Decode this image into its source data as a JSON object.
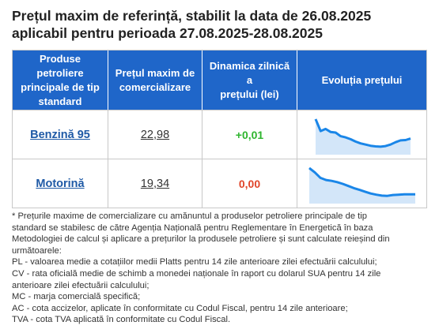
{
  "title": {
    "line1": "Prețul maxim de referință, stabilit la data de 26.08.2025",
    "line2": "aplicabil pentru perioada 27.08.2025-28.08.2025"
  },
  "table": {
    "headers": {
      "products": [
        "Produse petroliere",
        "principale de tip",
        "standard"
      ],
      "max_price": [
        "Prețul maxim de",
        "comercializare"
      ],
      "dynamics": [
        "Dinamica zilnică a",
        "prețului (lei)"
      ],
      "evolution": "Evoluția prețului"
    },
    "header_color": "#1f66c9",
    "rows": [
      {
        "product": "Benzină 95",
        "price": "22,98",
        "dynamics": "+0,01",
        "dynamics_color": "#2fb52f",
        "trend": [
          0.95,
          0.55,
          0.62,
          0.52,
          0.5,
          0.38,
          0.34,
          0.28,
          0.2,
          0.14,
          0.1,
          0.06,
          0.04,
          0.03,
          0.05,
          0.1,
          0.18,
          0.24,
          0.25,
          0.3
        ]
      },
      {
        "product": "Motorină",
        "price": "19,34",
        "dynamics": "0,00",
        "dynamics_color": "#e0452a",
        "trend": [
          0.95,
          0.8,
          0.62,
          0.55,
          0.52,
          0.48,
          0.42,
          0.35,
          0.28,
          0.22,
          0.16,
          0.1,
          0.06,
          0.03,
          0.02,
          0.05,
          0.06,
          0.07,
          0.07,
          0.07
        ]
      }
    ],
    "trend_color": "#1a86e8",
    "trend_fill": "#d3e6f9"
  },
  "notes": [
    "* Prețurile maxime de comercializare cu amănuntul a produselor petroliere principale de tip",
    "standard se stabilesc de către Agenția Națională pentru Reglementare în Energetică în baza",
    "Metodologiei de calcul și aplicare a prețurilor la produsele petroliere și sunt calculate reieșind din",
    "următoarele:",
    "PL - valoarea medie a cotațiilor medii Platts pentru 14 zile anterioare zilei efectuării calculului;",
    "CV - rata oficială medie de schimb a monedei naționale în raport cu dolarul SUA pentru 14 zile",
    "anterioare zilei efectuării calculului;",
    "MC - marja comercială specifică;",
    "AC - cota accizelor, aplicate în conformitate cu Codul Fiscal, pentru 14 zile anterioare;",
    "TVA - cota TVA aplicată în conformitate cu Codul Fiscal."
  ]
}
